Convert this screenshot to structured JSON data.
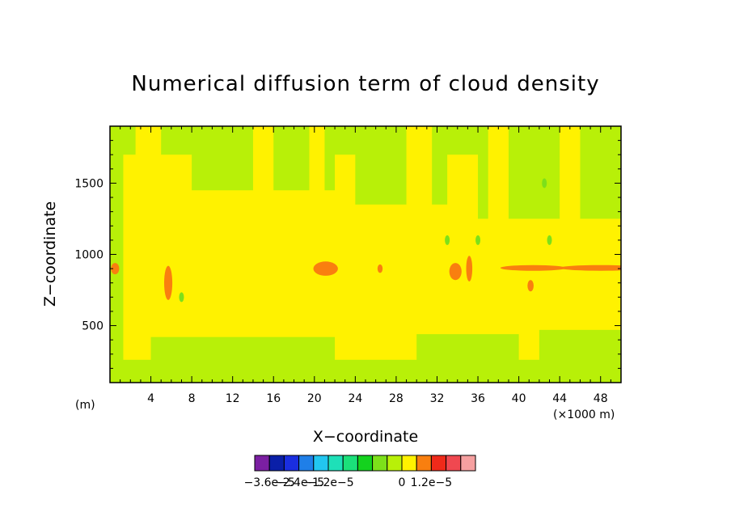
{
  "chart_data": {
    "type": "heatmap",
    "title": "Numerical diffusion term of cloud density",
    "xlabel": "X−coordinate",
    "ylabel": "Z−coordinate",
    "x_unit_label": "(×1000 m)",
    "y_unit_label": "(m)",
    "xlim": [
      0,
      50
    ],
    "ylim": [
      100,
      1900
    ],
    "x_ticks": [
      4,
      8,
      12,
      16,
      20,
      24,
      28,
      32,
      36,
      40,
      44,
      48
    ],
    "y_ticks": [
      500,
      1000,
      1500
    ],
    "x_tick_labels": [
      "4",
      "8",
      "12",
      "16",
      "20",
      "24",
      "28",
      "32",
      "36",
      "40",
      "44",
      "48"
    ],
    "y_tick_labels": [
      "500",
      "1000",
      "1500"
    ],
    "colorbar": {
      "colors": [
        "#7b1fa2",
        "#0a1fa8",
        "#1a2ee0",
        "#1f7fe8",
        "#22c6f0",
        "#1ee0b8",
        "#1be07a",
        "#14d21e",
        "#7de01a",
        "#b8f008",
        "#fff200",
        "#f97f0f",
        "#ef2a1a",
        "#f04850",
        "#f6a0a0"
      ],
      "labels": [
        "−3.6e−5",
        "−2.4e−5",
        "−1.2e−5",
        "0",
        "1.2e−5"
      ]
    },
    "field_description_levels": {
      "background": "#fff200",
      "upper_and_edges": "#b8f008",
      "positive_patches": "#f97f0f",
      "negative_patches": "#7de01a"
    }
  }
}
